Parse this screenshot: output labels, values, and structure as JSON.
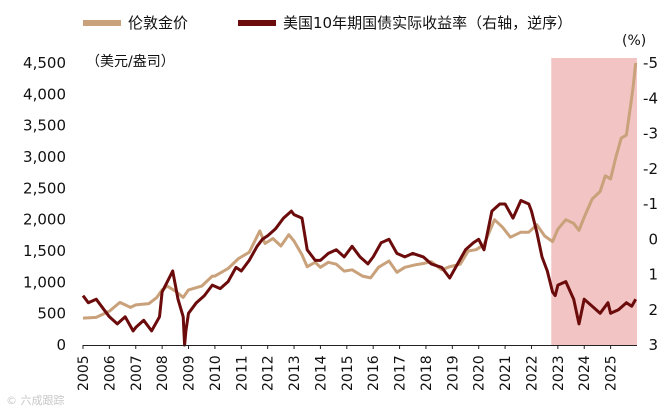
{
  "chart_data": {
    "type": "line",
    "legend_placement": "top",
    "grid": false,
    "left_unit": "（美元/盎司）",
    "right_unit": "(%)",
    "left_axis": {
      "ylim": [
        0,
        4500
      ],
      "ticks": [
        {
          "value": 0,
          "label": "0"
        },
        {
          "value": 500,
          "label": "500"
        },
        {
          "value": 1000,
          "label": "1,000"
        },
        {
          "value": 1500,
          "label": "1,500"
        },
        {
          "value": 2000,
          "label": "2,000"
        },
        {
          "value": 2500,
          "label": "2,500"
        },
        {
          "value": 3000,
          "label": "3,000"
        },
        {
          "value": 3500,
          "label": "3,500"
        },
        {
          "value": 4000,
          "label": "4,000"
        },
        {
          "value": 4500,
          "label": "4,500"
        }
      ]
    },
    "right_axis": {
      "inverted": true,
      "ylim": [
        -5,
        3
      ],
      "ticks": [
        {
          "value": -5,
          "label": "-5"
        },
        {
          "value": -4,
          "label": "-4"
        },
        {
          "value": -3,
          "label": "-3"
        },
        {
          "value": -2,
          "label": "-2"
        },
        {
          "value": -1,
          "label": "-1"
        },
        {
          "value": 0,
          "label": "0"
        },
        {
          "value": 1,
          "label": "1"
        },
        {
          "value": 2,
          "label": "2"
        },
        {
          "value": 3,
          "label": "3"
        }
      ]
    },
    "x_axis": {
      "xlim": [
        2005.0,
        2026.0
      ],
      "tick_labels": [
        "2005",
        "2006",
        "2007",
        "2008",
        "2009",
        "2010",
        "2011",
        "2012",
        "2013",
        "2014",
        "2015",
        "2016",
        "2017",
        "2018",
        "2019",
        "2020",
        "2021",
        "2022",
        "2023",
        "2024",
        "2025"
      ]
    },
    "highlight": {
      "x_start": 2022.75,
      "x_end": 2026.0,
      "color": "#f2c4c4"
    },
    "series": [
      {
        "name": "伦敦金价",
        "axis": "left",
        "color": "#c9a17a",
        "points": [
          [
            2005.0,
            430
          ],
          [
            2005.5,
            440
          ],
          [
            2006.0,
            540
          ],
          [
            2006.4,
            680
          ],
          [
            2006.8,
            600
          ],
          [
            2007.0,
            640
          ],
          [
            2007.5,
            660
          ],
          [
            2007.8,
            760
          ],
          [
            2008.0,
            880
          ],
          [
            2008.2,
            940
          ],
          [
            2008.5,
            860
          ],
          [
            2008.8,
            760
          ],
          [
            2009.0,
            880
          ],
          [
            2009.5,
            940
          ],
          [
            2009.9,
            1100
          ],
          [
            2010.0,
            1100
          ],
          [
            2010.5,
            1220
          ],
          [
            2010.9,
            1380
          ],
          [
            2011.3,
            1480
          ],
          [
            2011.7,
            1820
          ],
          [
            2011.9,
            1620
          ],
          [
            2012.2,
            1700
          ],
          [
            2012.5,
            1580
          ],
          [
            2012.8,
            1760
          ],
          [
            2013.0,
            1660
          ],
          [
            2013.3,
            1440
          ],
          [
            2013.5,
            1250
          ],
          [
            2013.8,
            1320
          ],
          [
            2014.0,
            1240
          ],
          [
            2014.3,
            1320
          ],
          [
            2014.6,
            1290
          ],
          [
            2014.9,
            1180
          ],
          [
            2015.2,
            1200
          ],
          [
            2015.6,
            1100
          ],
          [
            2015.9,
            1070
          ],
          [
            2016.2,
            1240
          ],
          [
            2016.6,
            1340
          ],
          [
            2016.9,
            1160
          ],
          [
            2017.2,
            1240
          ],
          [
            2017.6,
            1280
          ],
          [
            2017.9,
            1300
          ],
          [
            2018.2,
            1330
          ],
          [
            2018.6,
            1200
          ],
          [
            2018.9,
            1250
          ],
          [
            2019.3,
            1290
          ],
          [
            2019.6,
            1500
          ],
          [
            2019.9,
            1520
          ],
          [
            2020.2,
            1600
          ],
          [
            2020.6,
            2000
          ],
          [
            2020.9,
            1880
          ],
          [
            2021.2,
            1720
          ],
          [
            2021.6,
            1800
          ],
          [
            2021.9,
            1800
          ],
          [
            2022.2,
            1920
          ],
          [
            2022.5,
            1740
          ],
          [
            2022.8,
            1650
          ],
          [
            2023.0,
            1850
          ],
          [
            2023.3,
            2000
          ],
          [
            2023.6,
            1940
          ],
          [
            2023.8,
            1830
          ],
          [
            2024.0,
            2040
          ],
          [
            2024.3,
            2330
          ],
          [
            2024.6,
            2450
          ],
          [
            2024.8,
            2700
          ],
          [
            2025.0,
            2650
          ],
          [
            2025.2,
            3000
          ],
          [
            2025.4,
            3300
          ],
          [
            2025.6,
            3350
          ],
          [
            2025.75,
            3800
          ],
          [
            2025.85,
            4100
          ],
          [
            2025.95,
            4500
          ]
        ]
      },
      {
        "name": "美国10年期国债实际收益率（右轴，逆序）",
        "axis": "right",
        "color": "#6b0b0b",
        "points": [
          [
            2005.0,
            1.6
          ],
          [
            2005.2,
            1.8
          ],
          [
            2005.5,
            1.7
          ],
          [
            2005.8,
            2.0
          ],
          [
            2006.0,
            2.2
          ],
          [
            2006.3,
            2.4
          ],
          [
            2006.6,
            2.2
          ],
          [
            2006.9,
            2.6
          ],
          [
            2007.0,
            2.5
          ],
          [
            2007.3,
            2.3
          ],
          [
            2007.6,
            2.6
          ],
          [
            2007.9,
            2.2
          ],
          [
            2008.0,
            1.5
          ],
          [
            2008.2,
            1.2
          ],
          [
            2008.4,
            0.9
          ],
          [
            2008.6,
            1.7
          ],
          [
            2008.8,
            2.2
          ],
          [
            2008.85,
            3.0
          ],
          [
            2008.9,
            2.6
          ],
          [
            2009.0,
            2.1
          ],
          [
            2009.3,
            1.8
          ],
          [
            2009.6,
            1.6
          ],
          [
            2009.9,
            1.3
          ],
          [
            2010.2,
            1.4
          ],
          [
            2010.5,
            1.2
          ],
          [
            2010.8,
            0.8
          ],
          [
            2011.0,
            0.9
          ],
          [
            2011.3,
            0.6
          ],
          [
            2011.6,
            0.2
          ],
          [
            2011.8,
            0.0
          ],
          [
            2012.0,
            -0.1
          ],
          [
            2012.3,
            -0.3
          ],
          [
            2012.6,
            -0.6
          ],
          [
            2012.9,
            -0.8
          ],
          [
            2013.0,
            -0.7
          ],
          [
            2013.3,
            -0.6
          ],
          [
            2013.5,
            0.3
          ],
          [
            2013.8,
            0.6
          ],
          [
            2014.0,
            0.6
          ],
          [
            2014.3,
            0.4
          ],
          [
            2014.6,
            0.3
          ],
          [
            2014.9,
            0.5
          ],
          [
            2015.2,
            0.2
          ],
          [
            2015.5,
            0.5
          ],
          [
            2015.8,
            0.7
          ],
          [
            2016.0,
            0.5
          ],
          [
            2016.3,
            0.1
          ],
          [
            2016.6,
            0.0
          ],
          [
            2016.9,
            0.4
          ],
          [
            2017.2,
            0.5
          ],
          [
            2017.5,
            0.4
          ],
          [
            2017.9,
            0.5
          ],
          [
            2018.2,
            0.7
          ],
          [
            2018.6,
            0.8
          ],
          [
            2018.9,
            1.1
          ],
          [
            2019.2,
            0.7
          ],
          [
            2019.5,
            0.3
          ],
          [
            2019.8,
            0.1
          ],
          [
            2020.0,
            0.0
          ],
          [
            2020.2,
            0.3
          ],
          [
            2020.5,
            -0.8
          ],
          [
            2020.8,
            -1.0
          ],
          [
            2021.0,
            -1.0
          ],
          [
            2021.3,
            -0.6
          ],
          [
            2021.6,
            -1.1
          ],
          [
            2021.9,
            -1.0
          ],
          [
            2022.0,
            -0.8
          ],
          [
            2022.2,
            -0.2
          ],
          [
            2022.4,
            0.5
          ],
          [
            2022.6,
            0.9
          ],
          [
            2022.8,
            1.5
          ],
          [
            2022.9,
            1.6
          ],
          [
            2023.0,
            1.3
          ],
          [
            2023.3,
            1.2
          ],
          [
            2023.6,
            1.7
          ],
          [
            2023.8,
            2.4
          ],
          [
            2024.0,
            1.7
          ],
          [
            2024.3,
            1.9
          ],
          [
            2024.6,
            2.1
          ],
          [
            2024.9,
            1.8
          ],
          [
            2025.0,
            2.1
          ],
          [
            2025.3,
            2.0
          ],
          [
            2025.6,
            1.8
          ],
          [
            2025.8,
            1.9
          ],
          [
            2025.95,
            1.7
          ]
        ]
      }
    ]
  },
  "watermark": "© 六成跟踪"
}
